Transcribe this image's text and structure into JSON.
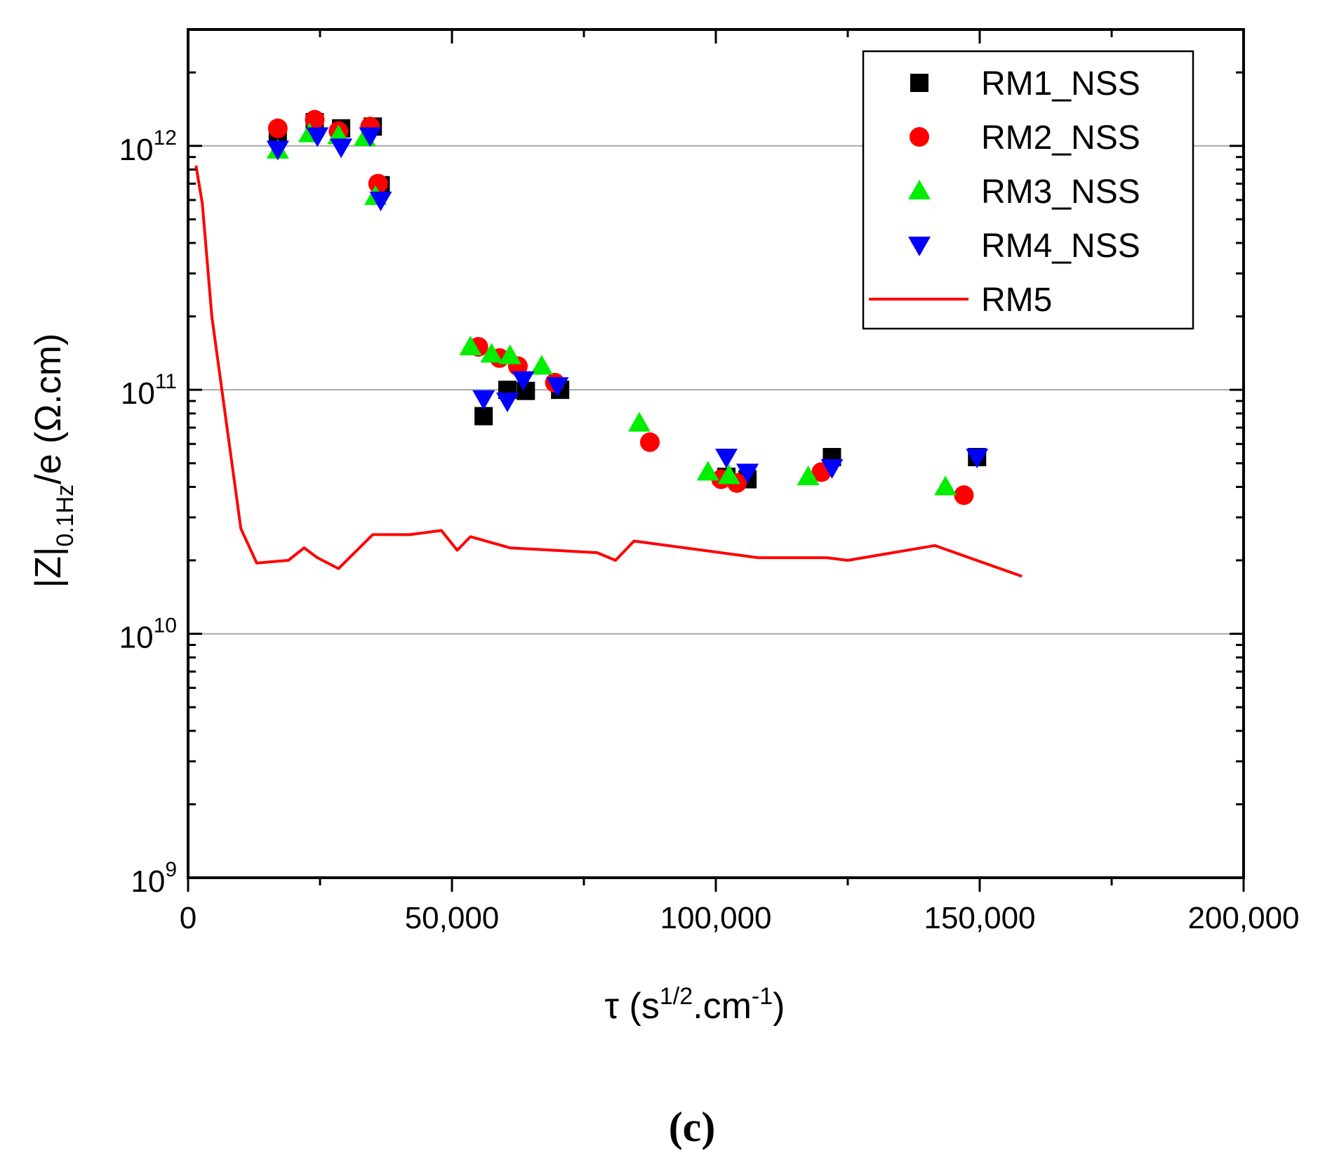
{
  "chart_data": {
    "type": "scatter",
    "x_axis": {
      "label": "τ  (s",
      "label_sup1": "1/2",
      "label_mid": ".cm",
      "label_sup2": "-1",
      "label_end": ")",
      "range": [
        0,
        200000
      ],
      "ticks": [
        0,
        50000,
        100000,
        150000,
        200000
      ],
      "tick_labels": [
        "0",
        "50,000",
        "100,000",
        "150,000",
        "200,000"
      ]
    },
    "y_axis": {
      "scale": "log",
      "label_main": "|Z|",
      "label_sub": "0.1Hz",
      "label_end": "/e   (Ω.cm)",
      "range": [
        1000000000.0,
        3000000000000.0
      ],
      "ticks": [
        1000000000.0,
        10000000000.0,
        100000000000.0,
        1000000000000.0
      ],
      "tick_labels": [
        {
          "base": "10",
          "exp": "9"
        },
        {
          "base": "10",
          "exp": "10"
        },
        {
          "base": "10",
          "exp": "11"
        },
        {
          "base": "10",
          "exp": "12"
        }
      ]
    },
    "grid": "horizontal at major ticks",
    "legend_position": "top-right",
    "series": [
      {
        "name": "RM1_NSS",
        "marker": "square",
        "color": "#000000",
        "points": [
          [
            17000,
            1100000000000.0
          ],
          [
            24000,
            1250000000000.0
          ],
          [
            29000,
            1180000000000.0
          ],
          [
            35000,
            1200000000000.0
          ],
          [
            36500,
            690000000000.0
          ],
          [
            56000,
            78000000000.0
          ],
          [
            60500,
            100000000000.0
          ],
          [
            64000,
            99000000000.0
          ],
          [
            70500,
            100000000000.0
          ],
          [
            102000,
            44000000000.0
          ],
          [
            106000,
            43000000000.0
          ],
          [
            122000,
            53000000000.0
          ],
          [
            149500,
            53000000000.0
          ]
        ]
      },
      {
        "name": "RM2_NSS",
        "marker": "circle",
        "color": "#ff0000",
        "points": [
          [
            17000,
            1180000000000.0
          ],
          [
            24000,
            1280000000000.0
          ],
          [
            28500,
            1150000000000.0
          ],
          [
            34500,
            1200000000000.0
          ],
          [
            36000,
            700000000000.0
          ],
          [
            55000,
            150000000000.0
          ],
          [
            59000,
            135000000000.0
          ],
          [
            62500,
            125000000000.0
          ],
          [
            69500,
            107000000000.0
          ],
          [
            87500,
            61000000000.0
          ],
          [
            101000,
            43000000000.0
          ],
          [
            104000,
            41500000000.0
          ],
          [
            120000,
            46000000000.0
          ],
          [
            147000,
            37000000000.0
          ]
        ]
      },
      {
        "name": "RM3_NSS",
        "marker": "triangle-up",
        "color": "#00ee00",
        "points": [
          [
            17000,
            960000000000.0
          ],
          [
            23000,
            1120000000000.0
          ],
          [
            28500,
            1100000000000.0
          ],
          [
            33500,
            1080000000000.0
          ],
          [
            35500,
            620000000000.0
          ],
          [
            53500,
            150000000000.0
          ],
          [
            57500,
            140000000000.0
          ],
          [
            61000,
            138000000000.0
          ],
          [
            67000,
            125000000000.0
          ],
          [
            85500,
            73000000000.0
          ],
          [
            98500,
            46000000000.0
          ],
          [
            102500,
            44500000000.0
          ],
          [
            117500,
            44000000000.0
          ],
          [
            143500,
            40000000000.0
          ]
        ]
      },
      {
        "name": "RM4_NSS",
        "marker": "triangle-down",
        "color": "#0000ff",
        "points": [
          [
            17000,
            970000000000.0
          ],
          [
            24500,
            1100000000000.0
          ],
          [
            29000,
            990000000000.0
          ],
          [
            34500,
            1100000000000.0
          ],
          [
            36500,
            600000000000.0
          ],
          [
            56000,
            92000000000.0
          ],
          [
            60500,
            90000000000.0
          ],
          [
            63500,
            110000000000.0
          ],
          [
            70000,
            104000000000.0
          ],
          [
            102000,
            53000000000.0
          ],
          [
            106000,
            46000000000.0
          ],
          [
            122000,
            48000000000.0
          ],
          [
            149500,
            53000000000.0
          ]
        ]
      },
      {
        "name": "RM5",
        "marker": "line",
        "color": "#ff0000",
        "points": [
          [
            1500,
            830000000000.0
          ],
          [
            2700,
            580000000000.0
          ],
          [
            4500,
            200000000000.0
          ],
          [
            10000,
            27000000000.0
          ],
          [
            13000,
            19500000000.0
          ],
          [
            19000,
            20000000000.0
          ],
          [
            22000,
            22500000000.0
          ],
          [
            24500,
            20500000000.0
          ],
          [
            28500,
            18500000000.0
          ],
          [
            35000,
            25500000000.0
          ],
          [
            42000,
            25500000000.0
          ],
          [
            48000,
            26500000000.0
          ],
          [
            51000,
            22000000000.0
          ],
          [
            53500,
            25000000000.0
          ],
          [
            61000,
            22500000000.0
          ],
          [
            77500,
            21500000000.0
          ],
          [
            81000,
            20000000000.0
          ],
          [
            84500,
            24000000000.0
          ],
          [
            108000,
            20500000000.0
          ],
          [
            121000,
            20500000000.0
          ],
          [
            125000,
            20000000000.0
          ],
          [
            141500,
            23000000000.0
          ],
          [
            158000,
            17200000000.0
          ]
        ]
      }
    ]
  },
  "caption": "(c)"
}
